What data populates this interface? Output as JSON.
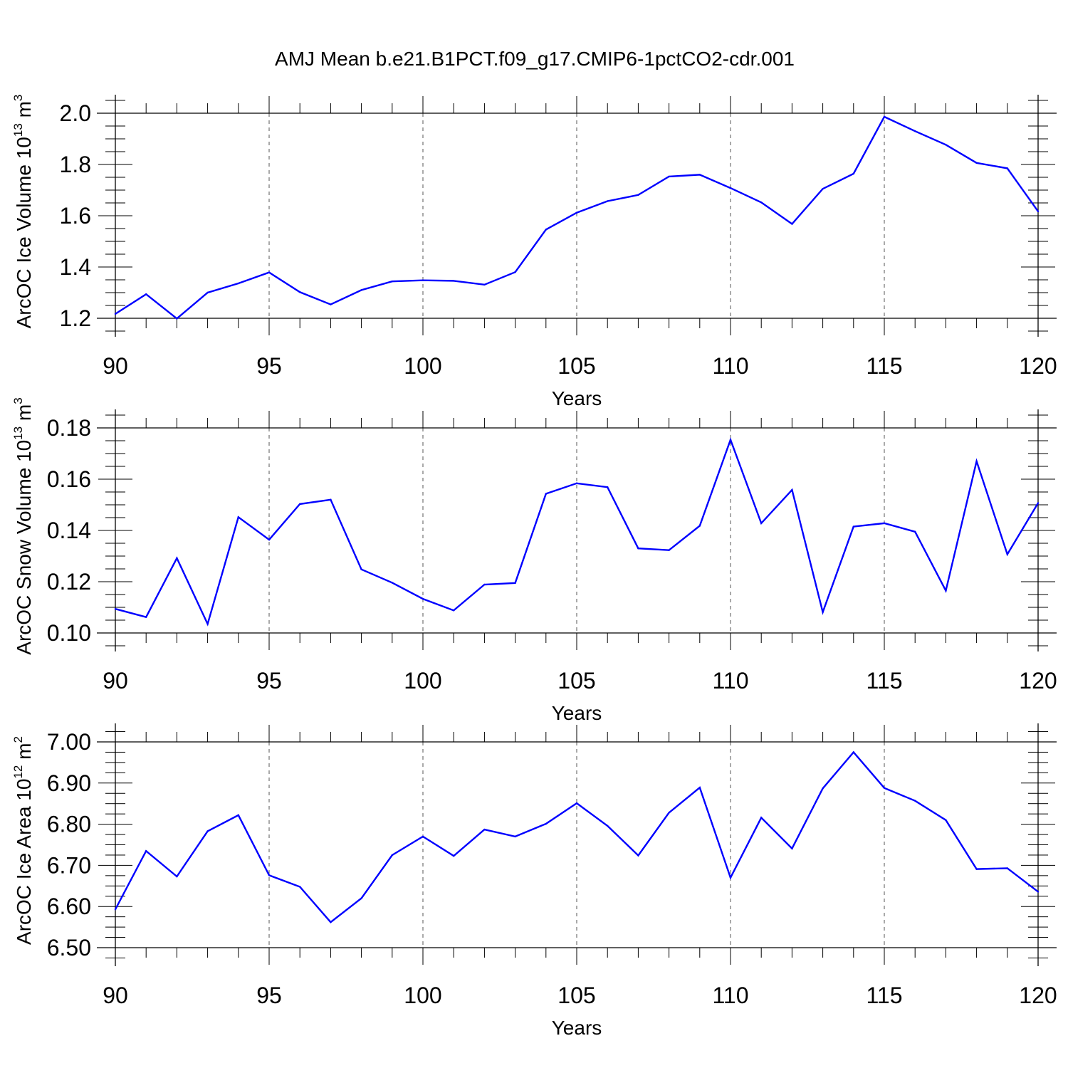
{
  "title": "AMJ Mean b.e21.B1PCT.f09_g17.CMIP6-1pctCO2-cdr.001",
  "colors": {
    "line": "#0000ff",
    "axis": "#000000",
    "grid": "#555555"
  },
  "chart_data": [
    {
      "type": "line",
      "name": "ice-volume",
      "ylabel": "ArcOC Ice Volume",
      "yunit": {
        "base": "10",
        "exp": "13",
        "unit": "m",
        "unit_exp": "3"
      },
      "xlabel": "Years",
      "xlim": [
        90,
        120
      ],
      "ylim": [
        1.2,
        2.0
      ],
      "yticks": [
        "1.2",
        "1.4",
        "1.6",
        "1.8",
        "2.0"
      ],
      "xticks": [
        "90",
        "95",
        "100",
        "105",
        "110",
        "115",
        "120"
      ],
      "x": [
        90,
        91,
        92,
        93,
        94,
        95,
        96,
        97,
        98,
        99,
        100,
        101,
        102,
        103,
        104,
        105,
        106,
        107,
        108,
        109,
        110,
        111,
        112,
        113,
        114,
        115,
        116,
        117,
        118,
        119,
        120
      ],
      "values": [
        1.217,
        1.294,
        1.199,
        1.3,
        1.336,
        1.379,
        1.302,
        1.254,
        1.31,
        1.344,
        1.348,
        1.346,
        1.331,
        1.38,
        1.546,
        1.612,
        1.657,
        1.681,
        1.753,
        1.76,
        1.708,
        1.652,
        1.568,
        1.705,
        1.764,
        1.986,
        1.93,
        1.877,
        1.806,
        1.785,
        1.617
      ]
    },
    {
      "type": "line",
      "name": "snow-volume",
      "ylabel": "ArcOC Snow Volume",
      "yunit": {
        "base": "10",
        "exp": "13",
        "unit": "m",
        "unit_exp": "3"
      },
      "xlabel": "Years",
      "xlim": [
        90,
        120
      ],
      "ylim": [
        0.1,
        0.18
      ],
      "yticks": [
        "0.10",
        "0.12",
        "0.14",
        "0.16",
        "0.18"
      ],
      "xticks": [
        "90",
        "95",
        "100",
        "105",
        "110",
        "115",
        "120"
      ],
      "x": [
        90,
        91,
        92,
        93,
        94,
        95,
        96,
        97,
        98,
        99,
        100,
        101,
        102,
        103,
        104,
        105,
        106,
        107,
        108,
        109,
        110,
        111,
        112,
        113,
        114,
        115,
        116,
        117,
        118,
        119,
        120
      ],
      "values": [
        0.1094,
        0.1062,
        0.1292,
        0.1035,
        0.1452,
        0.1364,
        0.1503,
        0.152,
        0.1248,
        0.1196,
        0.1133,
        0.1088,
        0.1189,
        0.1195,
        0.1543,
        0.1584,
        0.1569,
        0.133,
        0.1323,
        0.1418,
        0.1754,
        0.1428,
        0.1558,
        0.1081,
        0.1415,
        0.1428,
        0.1395,
        0.1165,
        0.167,
        0.1307,
        0.1507
      ]
    },
    {
      "type": "line",
      "name": "ice-area",
      "ylabel": "ArcOC Ice Area",
      "yunit": {
        "base": "10",
        "exp": "12",
        "unit": "m",
        "unit_exp": "2"
      },
      "xlabel": "Years",
      "xlim": [
        90,
        120
      ],
      "ylim": [
        6.5,
        7.0
      ],
      "yticks": [
        "6.50",
        "6.60",
        "6.70",
        "6.80",
        "6.90",
        "7.00"
      ],
      "xticks": [
        "90",
        "95",
        "100",
        "105",
        "110",
        "115",
        "120"
      ],
      "x": [
        90,
        91,
        92,
        93,
        94,
        95,
        96,
        97,
        98,
        99,
        100,
        101,
        102,
        103,
        104,
        105,
        106,
        107,
        108,
        109,
        110,
        111,
        112,
        113,
        114,
        115,
        116,
        117,
        118,
        119,
        120
      ],
      "values": [
        6.593,
        6.735,
        6.673,
        6.783,
        6.822,
        6.676,
        6.648,
        6.562,
        6.62,
        6.725,
        6.77,
        6.723,
        6.787,
        6.77,
        6.801,
        6.851,
        6.796,
        6.724,
        6.828,
        6.889,
        6.67,
        6.816,
        6.741,
        6.887,
        6.975,
        6.888,
        6.857,
        6.81,
        6.691,
        6.693,
        6.636
      ]
    }
  ]
}
